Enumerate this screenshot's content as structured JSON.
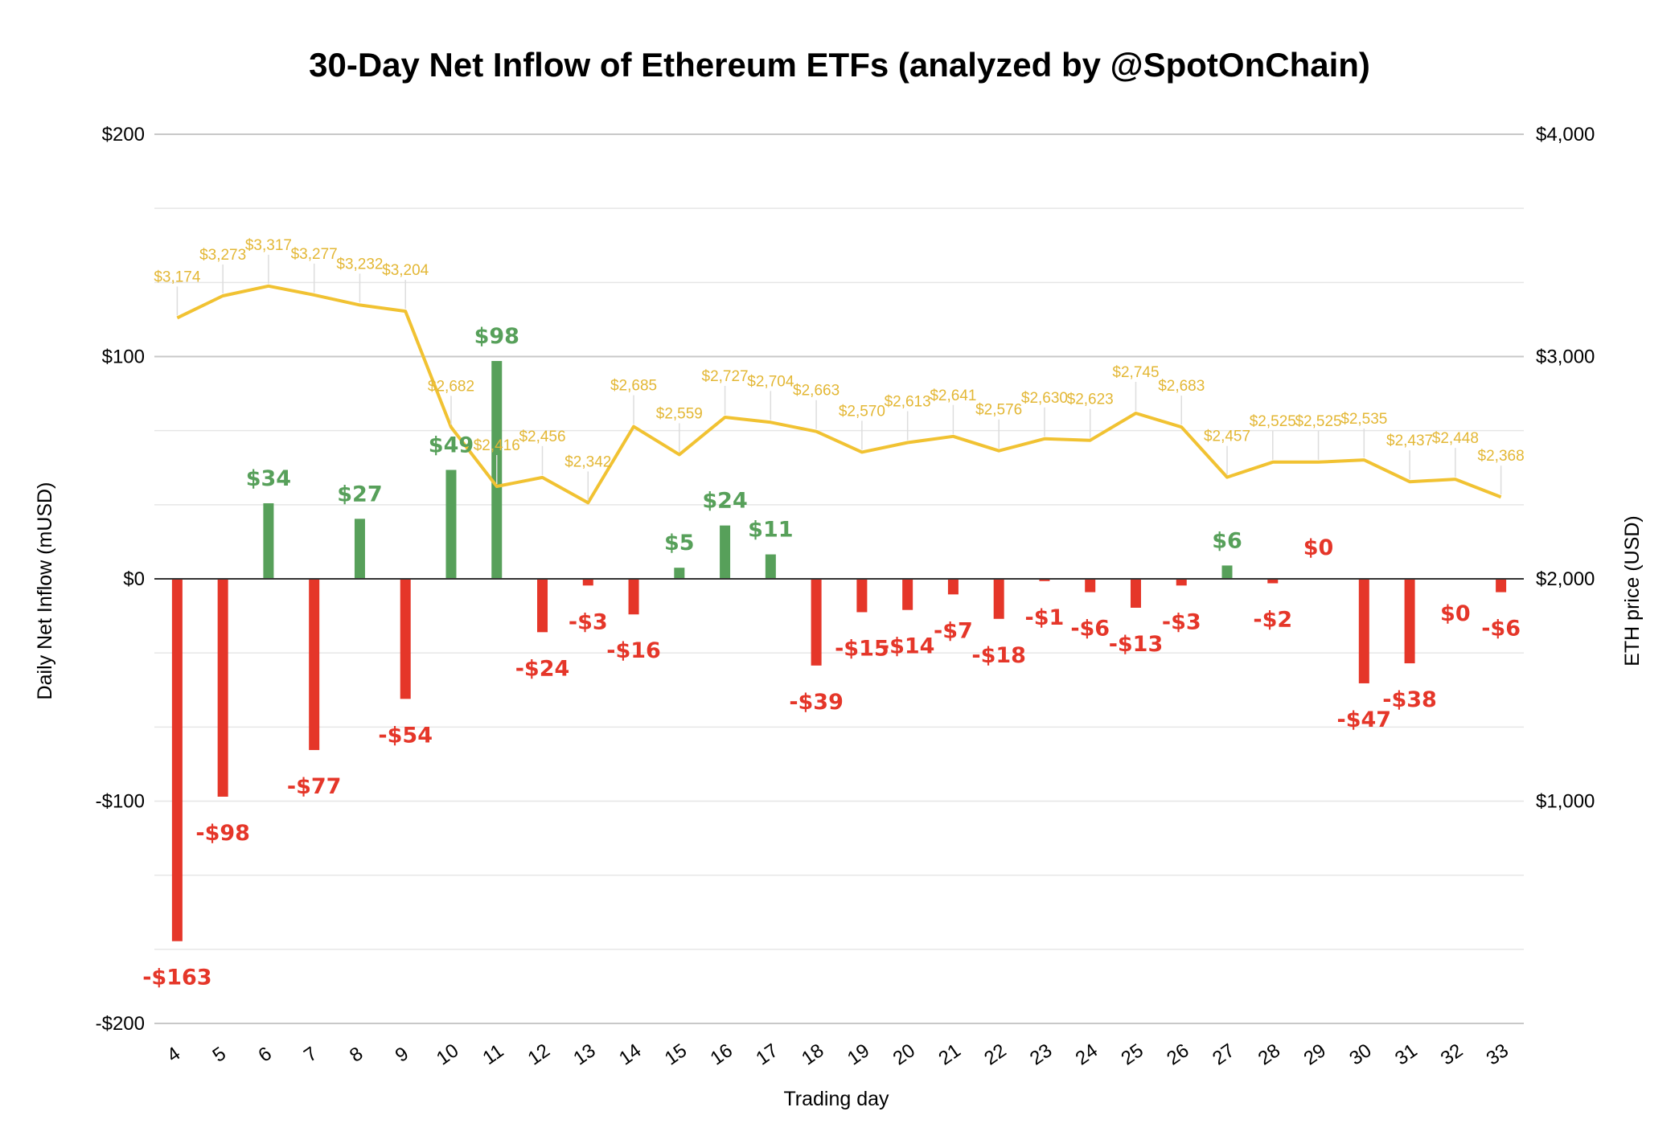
{
  "chart_data": {
    "type": "bar",
    "title": "30-Day Net Inflow of Ethereum ETFs (analyzed by @SpotOnChain)",
    "xlabel": "Trading day",
    "ylabel": "Daily Net Inflow (mUSD)",
    "y2label": "ETH price (USD)",
    "ylim": [
      -200,
      200
    ],
    "y2lim": [
      0,
      4000
    ],
    "yticks": [
      "$200",
      "$100",
      "$0",
      "-$100",
      "-$200"
    ],
    "y2ticks": [
      "$4,000",
      "$3,000",
      "$2,000",
      "$1,000"
    ],
    "grid": true,
    "colors": {
      "positive": "#57a05a",
      "negative": "#e53629",
      "price_line": "#f1c232",
      "price_label": "#e3b735",
      "grid": "#d9d9d9",
      "zero_line": "#333333"
    },
    "categories": [
      "4",
      "5",
      "6",
      "7",
      "8",
      "9",
      "10",
      "11",
      "12",
      "13",
      "14",
      "15",
      "16",
      "17",
      "18",
      "19",
      "20",
      "21",
      "22",
      "23",
      "24",
      "25",
      "26",
      "27",
      "28",
      "29",
      "30",
      "31",
      "32",
      "33"
    ],
    "series": [
      {
        "type": "bar",
        "values": [
          -163,
          -98,
          34,
          -77,
          27,
          -54,
          49,
          98,
          -24,
          -3,
          -16,
          5,
          24,
          11,
          -39,
          -15,
          -14,
          -7,
          -18,
          -1,
          -6,
          -13,
          -3,
          6,
          -2,
          0,
          -47,
          -38,
          0,
          -6
        ],
        "labels": [
          "-$163",
          "-$98",
          "$34",
          "-$77",
          "$27",
          "-$54",
          "$49",
          "$98",
          "-$24",
          "-$3",
          "-$16",
          "$5",
          "$24",
          "$11",
          "-$39",
          "-$15",
          "-$14",
          "-$7",
          "-$18",
          "-$1",
          "-$6",
          "-$13",
          "-$3",
          "$6",
          "-$2",
          "$0",
          "-$47",
          "-$38",
          "$0",
          "-$6"
        ]
      },
      {
        "type": "line",
        "axis": "right",
        "values": [
          3174,
          3273,
          3317,
          3277,
          3232,
          3204,
          2682,
          2416,
          2456,
          2342,
          2685,
          2559,
          2727,
          2704,
          2663,
          2570,
          2613,
          2641,
          2576,
          2630,
          2623,
          2745,
          2683,
          2457,
          2525,
          2525,
          2535,
          2437,
          2448,
          2368
        ],
        "labels": [
          "$3,174",
          "$3,273",
          "$3,317",
          "$3,277",
          "$3,232",
          "$3,204",
          "$2,682",
          "$2,416",
          "$2,456",
          "$2,342",
          "$2,685",
          "$2,559",
          "$2,727",
          "$2,704",
          "$2,663",
          "$2,570",
          "$2,613",
          "$2,641",
          "$2,576",
          "$2,630",
          "$2,623",
          "$2,745",
          "$2,683",
          "$2,457",
          "$2,525",
          "$2,525",
          "$2,535",
          "$2,437",
          "$2,448",
          "$2,368"
        ]
      }
    ]
  }
}
